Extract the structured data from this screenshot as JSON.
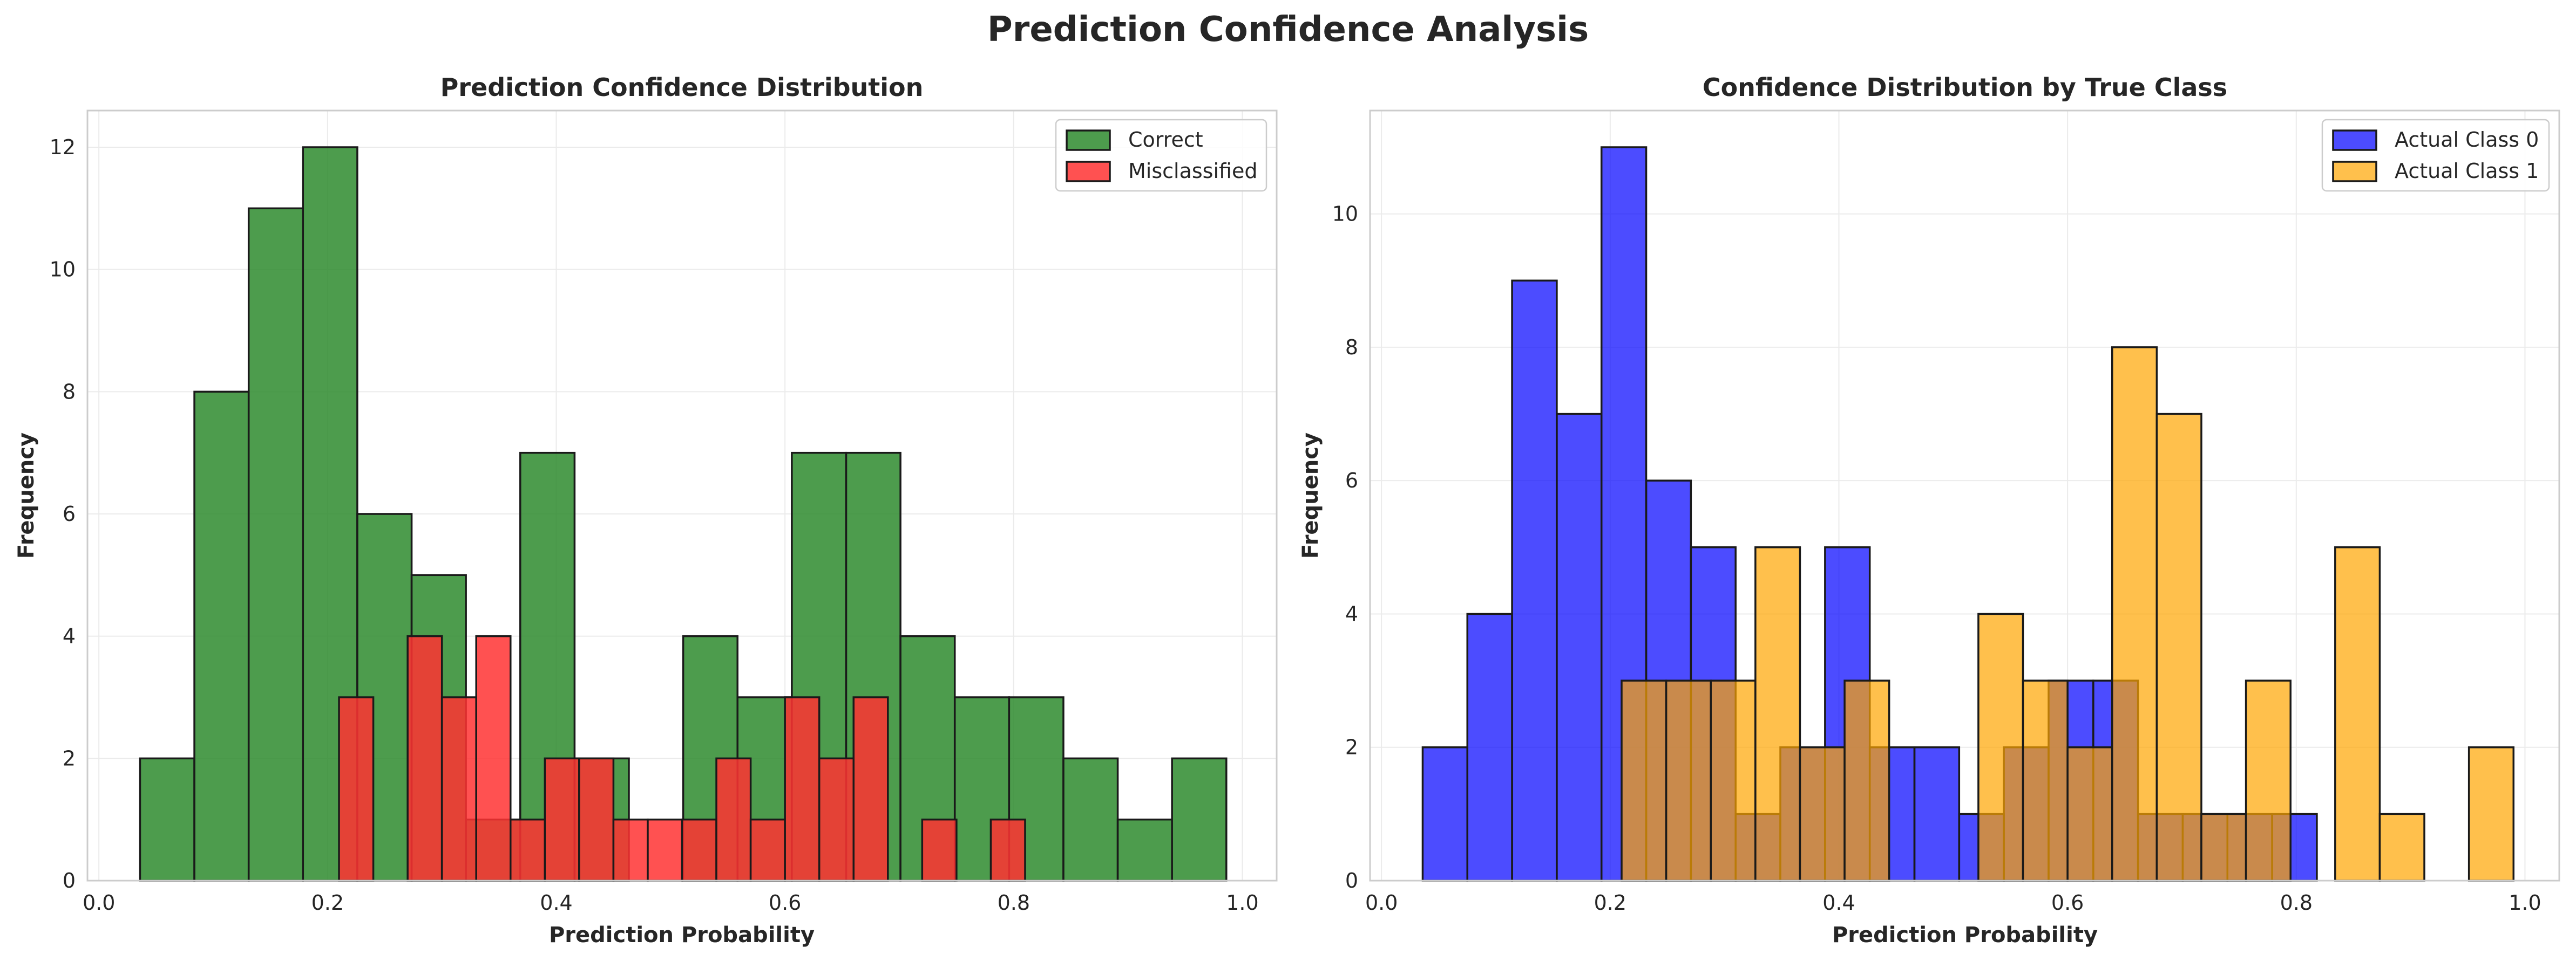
{
  "figure": {
    "title": "Prediction Confidence Analysis"
  },
  "chart_data": [
    {
      "type": "histogram",
      "title": "Prediction Confidence Distribution",
      "xlabel": "Prediction Probability",
      "ylabel": "Frequency",
      "xlim": [
        -0.01,
        1.03
      ],
      "ylim": [
        0,
        12.6
      ],
      "xticks": [
        0.0,
        0.2,
        0.4,
        0.6,
        0.8,
        1.0
      ],
      "xtick_labels": [
        "0.0",
        "0.2",
        "0.4",
        "0.6",
        "0.8",
        "1.0"
      ],
      "yticks": [
        0,
        2,
        4,
        6,
        8,
        10,
        12
      ],
      "grid": true,
      "legend_position": "top-right",
      "series": [
        {
          "name": "Correct",
          "color": "#2e8b2e",
          "alpha": 0.85,
          "bin_edges": [
            0.036,
            0.0835,
            0.131,
            0.1785,
            0.226,
            0.2735,
            0.321,
            0.3685,
            0.416,
            0.4635,
            0.511,
            0.5585,
            0.606,
            0.6535,
            0.701,
            0.7485,
            0.796,
            0.8435,
            0.891,
            0.9385,
            0.986
          ],
          "values": [
            2,
            8,
            11,
            12,
            6,
            5,
            1,
            7,
            2,
            0,
            4,
            3,
            7,
            7,
            4,
            3,
            3,
            2,
            1,
            2
          ]
        },
        {
          "name": "Misclassified",
          "color": "#ff3333",
          "alpha": 0.85,
          "bin_edges": [
            0.21,
            0.24,
            0.27,
            0.3,
            0.33,
            0.36,
            0.39,
            0.42,
            0.45,
            0.48,
            0.51,
            0.54,
            0.57,
            0.6,
            0.63,
            0.66,
            0.69,
            0.72,
            0.75,
            0.78,
            0.81
          ],
          "values": [
            3,
            0,
            4,
            3,
            4,
            1,
            2,
            2,
            1,
            1,
            1,
            2,
            1,
            3,
            2,
            3,
            0,
            1,
            0,
            1
          ]
        }
      ]
    },
    {
      "type": "histogram",
      "title": "Confidence Distribution by True Class",
      "xlabel": "Prediction Probability",
      "ylabel": "Frequency",
      "xlim": [
        -0.01,
        1.03
      ],
      "ylim": [
        0,
        11.55
      ],
      "xticks": [
        0.0,
        0.2,
        0.4,
        0.6,
        0.8,
        1.0
      ],
      "xtick_labels": [
        "0.0",
        "0.2",
        "0.4",
        "0.6",
        "0.8",
        "1.0"
      ],
      "yticks": [
        0,
        2,
        4,
        6,
        8,
        10
      ],
      "grid": true,
      "legend_position": "top-right",
      "series": [
        {
          "name": "Actual Class 0",
          "color": "#0000ff",
          "alpha": 0.7,
          "bin_edges": [
            0.036,
            0.0751,
            0.1142,
            0.1533,
            0.1924,
            0.2315,
            0.2706,
            0.3097,
            0.3488,
            0.3879,
            0.427,
            0.4661,
            0.5052,
            0.5443,
            0.5834,
            0.6225,
            0.6616,
            0.7007,
            0.7398,
            0.7789,
            0.818
          ],
          "values": [
            2,
            4,
            9,
            7,
            11,
            6,
            5,
            1,
            2,
            5,
            2,
            2,
            1,
            2,
            3,
            3,
            1,
            1,
            1,
            1
          ]
        },
        {
          "name": "Actual Class 1",
          "color": "#ffa500",
          "alpha": 0.7,
          "bin_edges": [
            0.21,
            0.249,
            0.288,
            0.327,
            0.366,
            0.405,
            0.444,
            0.483,
            0.522,
            0.561,
            0.6,
            0.639,
            0.678,
            0.717,
            0.756,
            0.795,
            0.834,
            0.873,
            0.912,
            0.951,
            0.99
          ],
          "values": [
            3,
            3,
            3,
            5,
            2,
            3,
            0,
            0,
            4,
            3,
            2,
            8,
            7,
            1,
            3,
            0,
            5,
            1,
            0,
            2
          ]
        }
      ]
    }
  ]
}
